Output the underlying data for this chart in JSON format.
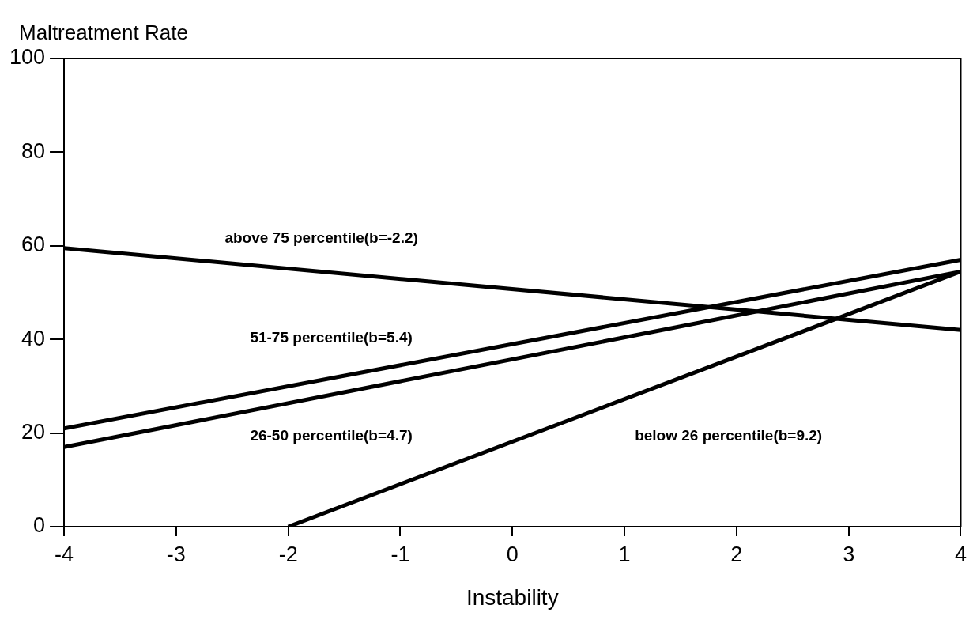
{
  "chart_data": {
    "type": "line",
    "ylabel": "Maltreatment Rate",
    "xlabel": "Instability",
    "xlim": [
      -4,
      4
    ],
    "xticks": [
      -4,
      -3,
      -2,
      -1,
      0,
      1,
      2,
      3,
      4
    ],
    "ylim": [
      0,
      100
    ],
    "yticks": [
      0,
      20,
      40,
      60,
      80,
      100
    ],
    "grid": false,
    "legend": false,
    "marker": "none",
    "line_style": "solid",
    "series": [
      {
        "name": "above 75 percentile(b=-2.2)",
        "color": "#000000",
        "x": [
          -4,
          4
        ],
        "values": [
          59.5,
          42
        ]
      },
      {
        "name": "51-75 percentile(b=5.4)",
        "color": "#000000",
        "x": [
          -4,
          4
        ],
        "values": [
          21,
          57
        ]
      },
      {
        "name": "26-50 percentile(b=4.7)",
        "color": "#000000",
        "x": [
          -4,
          4
        ],
        "values": [
          17,
          54.5
        ]
      },
      {
        "name": "below 26 percentile(b=9.2)",
        "color": "#000000",
        "x": [
          -2,
          4
        ],
        "values": [
          0,
          54.5
        ]
      }
    ]
  }
}
